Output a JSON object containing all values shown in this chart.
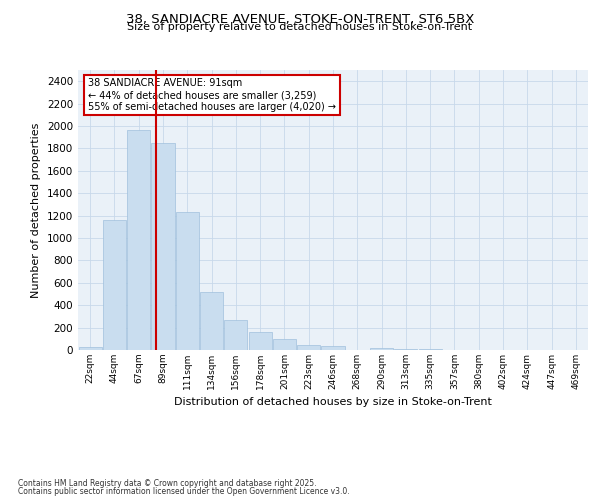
{
  "title_line1": "38, SANDIACRE AVENUE, STOKE-ON-TRENT, ST6 5BX",
  "title_line2": "Size of property relative to detached houses in Stoke-on-Trent",
  "xlabel": "Distribution of detached houses by size in Stoke-on-Trent",
  "ylabel": "Number of detached properties",
  "categories": [
    "22sqm",
    "44sqm",
    "67sqm",
    "89sqm",
    "111sqm",
    "134sqm",
    "156sqm",
    "178sqm",
    "201sqm",
    "223sqm",
    "246sqm",
    "268sqm",
    "290sqm",
    "313sqm",
    "335sqm",
    "357sqm",
    "380sqm",
    "402sqm",
    "424sqm",
    "447sqm",
    "469sqm"
  ],
  "values": [
    25,
    1160,
    1960,
    1850,
    1230,
    515,
    270,
    160,
    95,
    45,
    38,
    0,
    20,
    10,
    5,
    2,
    1,
    1,
    0,
    0,
    0
  ],
  "bar_color": "#c9ddef",
  "bar_edge_color": "#a0c0dd",
  "redline_color": "#cc0000",
  "annotation_line1": "38 SANDIACRE AVENUE: 91sqm",
  "annotation_line2": "← 44% of detached houses are smaller (3,259)",
  "annotation_line3": "55% of semi-detached houses are larger (4,020) →",
  "annotation_box_color": "#ffffff",
  "annotation_box_edge": "#cc0000",
  "grid_color": "#c8d8ea",
  "background_color": "#eaf1f8",
  "ylim": [
    0,
    2500
  ],
  "yticks": [
    0,
    200,
    400,
    600,
    800,
    1000,
    1200,
    1400,
    1600,
    1800,
    2000,
    2200,
    2400
  ],
  "footer_line1": "Contains HM Land Registry data © Crown copyright and database right 2025.",
  "footer_line2": "Contains public sector information licensed under the Open Government Licence v3.0."
}
